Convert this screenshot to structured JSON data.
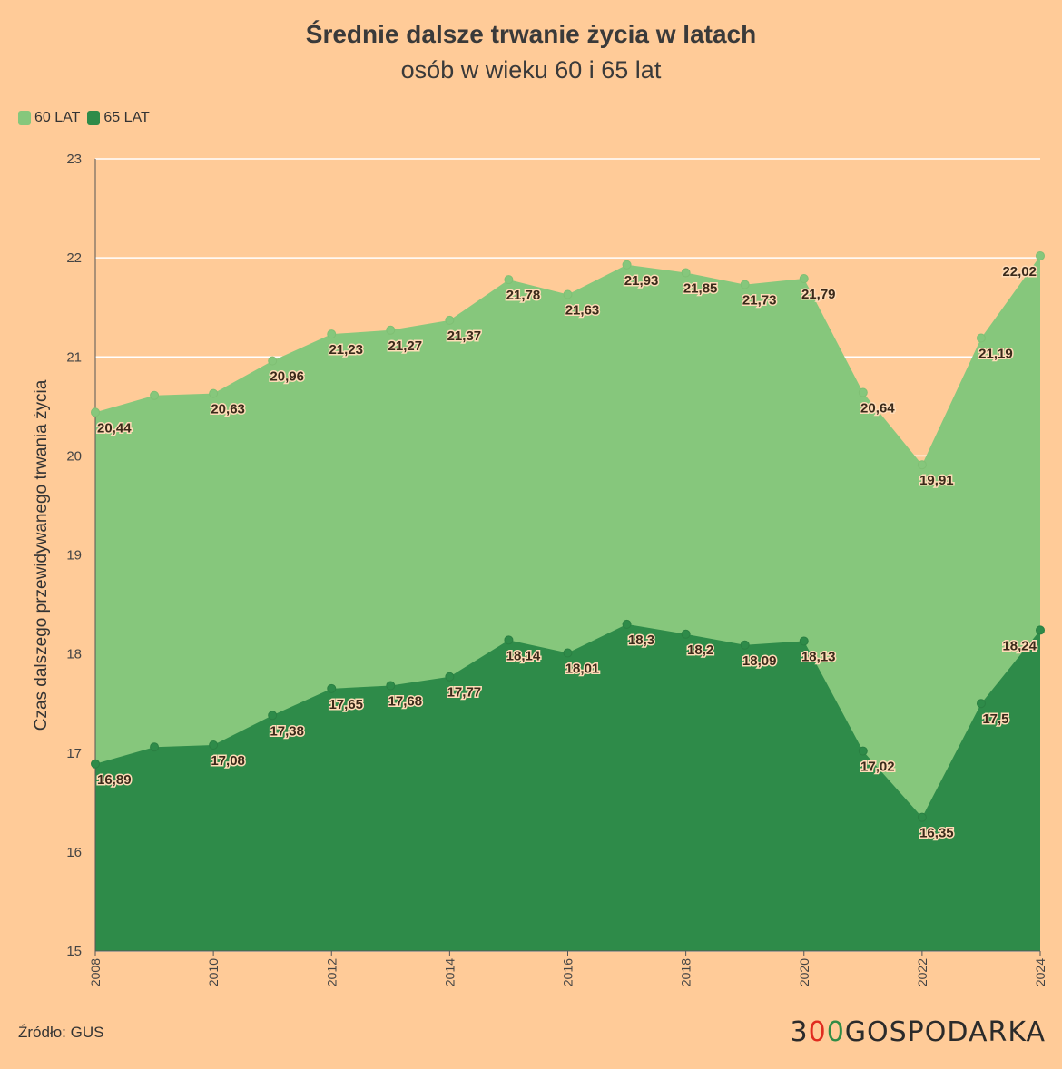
{
  "title": "Średnie dalsze trwanie życia w latach",
  "subtitle": "osób w wieku 60 i 65 lat",
  "source": "Źródło: GUS",
  "logo": {
    "part1": "3",
    "part2": "0",
    "part3": "0",
    "part4": "GOSPODARKA"
  },
  "colors": {
    "background": "#ffcb98",
    "series_60": "#86c77c",
    "series_65": "#2e8b49",
    "logo_red": "#e02b1f",
    "logo_green": "#2f8c46"
  },
  "chart_data": {
    "type": "area",
    "title": "Średnie dalsze trwanie życia w latach",
    "subtitle": "osób w wieku 60 i 65 lat",
    "xlabel": "",
    "ylabel": "Czas dalszego przewidywanego trwania życia",
    "ylim": [
      15,
      23
    ],
    "yticks": [
      15,
      16,
      17,
      18,
      19,
      20,
      21,
      22,
      23
    ],
    "x": [
      2008,
      2009,
      2010,
      2011,
      2012,
      2013,
      2014,
      2015,
      2016,
      2017,
      2018,
      2019,
      2020,
      2021,
      2022,
      2023,
      2024
    ],
    "xticks": [
      "2008",
      "2010",
      "2012",
      "2014",
      "2016",
      "2018",
      "2020",
      "2022",
      "2024"
    ],
    "legend": "top-left",
    "grid": true,
    "series": [
      {
        "name": "60 LAT",
        "color": "#86c77c",
        "values": [
          20.44,
          20.61,
          20.63,
          20.96,
          21.23,
          21.27,
          21.37,
          21.78,
          21.63,
          21.93,
          21.85,
          21.73,
          21.79,
          20.64,
          19.91,
          21.19,
          22.02
        ],
        "labels": [
          "20,44",
          "",
          "20,63",
          "20,96",
          "21,23",
          "21,27",
          "21,37",
          "21,78",
          "21,63",
          "21,93",
          "21,85",
          "21,73",
          "21,79",
          "20,64",
          "19,91",
          "21,19",
          "22,02"
        ]
      },
      {
        "name": "65 LAT",
        "color": "#2e8b49",
        "values": [
          16.89,
          17.06,
          17.08,
          17.38,
          17.65,
          17.68,
          17.77,
          18.14,
          18.01,
          18.3,
          18.2,
          18.09,
          18.13,
          17.02,
          16.35,
          17.5,
          18.24
        ],
        "labels": [
          "16,89",
          "",
          "17,08",
          "17,38",
          "17,65",
          "17,68",
          "17,77",
          "18,14",
          "18,01",
          "18,3",
          "18,2",
          "18,09",
          "18,13",
          "17,02",
          "16,35",
          "17,5",
          "18,24"
        ]
      }
    ]
  }
}
